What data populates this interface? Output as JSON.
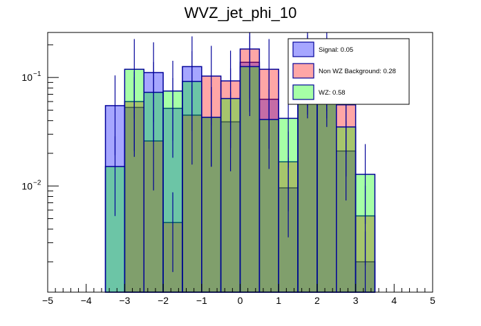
{
  "chart_data": {
    "type": "bar",
    "subtype": "overlaid-histogram",
    "title": "WVZ_jet_phi_10",
    "xlabel": "",
    "ylabel": "",
    "xlim": [
      -5,
      5
    ],
    "ylim": [
      0.00105,
      0.26
    ],
    "yscale": "log",
    "grid": false,
    "legend_position": "top-right",
    "x_ticks": [
      -5,
      -4,
      -3,
      -2,
      -1,
      0,
      1,
      2,
      3,
      4,
      5
    ],
    "x_tick_labels": [
      "−5",
      "−4",
      "−3",
      "−2",
      "−1",
      "0",
      "1",
      "2",
      "3",
      "4",
      "5"
    ],
    "y_ticks": [
      0.1,
      0.01
    ],
    "y_tick_labels": [
      {
        "base": "10",
        "exp": "−1"
      },
      {
        "base": "10",
        "exp": "−2"
      }
    ],
    "bin_edges": [
      -3.5,
      -3.0,
      -2.5,
      -2.0,
      -1.5,
      -1.0,
      -0.5,
      0.0,
      0.5,
      1.0,
      1.5,
      2.0,
      2.5,
      3.0,
      3.5
    ],
    "series": [
      {
        "name": "Signal",
        "legend_label": "Signal: 0.05",
        "fill": "#0000ff",
        "line": "#000099",
        "values": [
          0.055,
          0.053,
          0.111,
          0.052,
          0.126,
          0.043,
          0.039,
          0.138,
          0.063,
          0.0096,
          0.12,
          0.1,
          0.021,
          0.002
        ]
      },
      {
        "name": "Non WZ Background",
        "legend_label": "Non WZ Background: 0.28",
        "fill": "#ff0000",
        "line": "#000099",
        "values": [
          0.0,
          0.06,
          0.026,
          0.0046,
          0.045,
          0.103,
          0.093,
          0.183,
          0.119,
          0.0167,
          0.13,
          0.12,
          0.056,
          0.0053
        ]
      },
      {
        "name": "WZ",
        "legend_label": "WZ: 0.58",
        "fill": "#00ff00",
        "line": "#000099",
        "values": [
          0.0151,
          0.119,
          0.073,
          0.075,
          0.092,
          0.043,
          0.064,
          0.126,
          0.041,
          0.042,
          0.15,
          0.14,
          0.035,
          0.0128
        ]
      }
    ]
  }
}
